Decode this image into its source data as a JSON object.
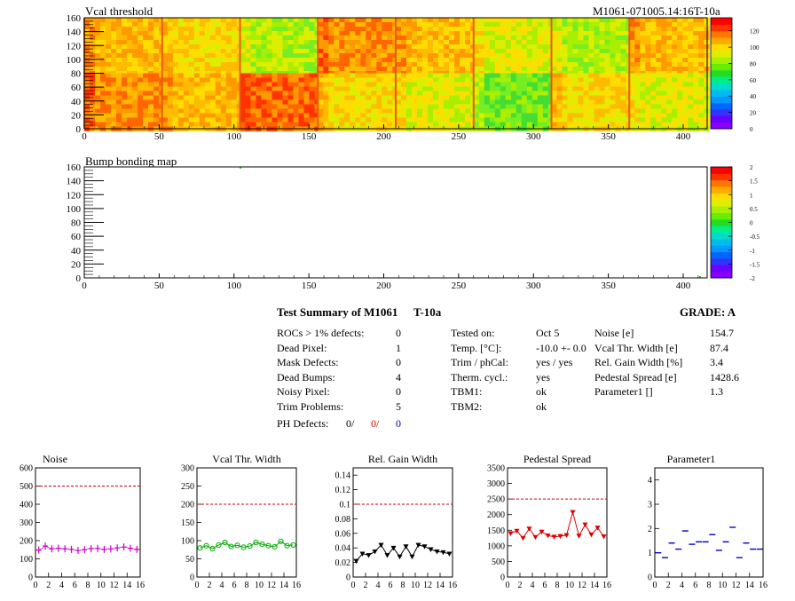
{
  "header": {
    "map1_title": "Vcal threshold",
    "module_id": "M1061-071005.14:16T-10a",
    "map2_title": "Bump bonding map"
  },
  "maps": {
    "x_ticks": [
      "0",
      "50",
      "100",
      "150",
      "200",
      "250",
      "300",
      "350",
      "400"
    ],
    "y_ticks": [
      "0",
      "20",
      "40",
      "60",
      "80",
      "100",
      "120",
      "140",
      "160"
    ],
    "colorbar1_labels": [
      "0",
      "20",
      "40",
      "60",
      "80",
      "100",
      "120"
    ],
    "colorbar2_labels": [
      "-2",
      "-1.5",
      "-1",
      "-0.5",
      "0",
      "0.5",
      "1",
      "1.5",
      "2"
    ]
  },
  "summary": {
    "title": "Test Summary of M1061",
    "subtitle": "T-10a",
    "grade": "GRADE:  A",
    "left_rows": [
      {
        "label": "ROCs > 1% defects:",
        "value": "0"
      },
      {
        "label": "Dead Pixel:",
        "value": "1"
      },
      {
        "label": "Mask Defects:",
        "value": "0"
      },
      {
        "label": "Dead Bumps:",
        "value": "4"
      },
      {
        "label": "Noisy Pixel:",
        "value": "0"
      },
      {
        "label": "Trim Problems:",
        "value": "5"
      }
    ],
    "ph_defects": {
      "label": "PH Defects:",
      "v1": "0/",
      "v2": "0/",
      "v3": "0"
    },
    "middle_rows": [
      {
        "label": "Tested on:",
        "value": "Oct 5"
      },
      {
        "label": "Temp. [°C]:",
        "value": "-10.0 +- 0.0"
      },
      {
        "label": "Trim / phCal:",
        "value": "yes / yes"
      },
      {
        "label": "Therm. cycl.:",
        "value": "yes"
      },
      {
        "label": "TBM1:",
        "value": "ok"
      },
      {
        "label": "TBM2:",
        "value": "ok"
      }
    ],
    "right_rows": [
      {
        "label": "Noise [e]",
        "value": "154.7"
      },
      {
        "label": "Vcal Thr. Width [e]",
        "value": "87.4"
      },
      {
        "label": "Rel. Gain Width [%]",
        "value": "3.4"
      },
      {
        "label": "Pedestal Spread [e]",
        "value": "1428.6"
      },
      {
        "label": "Parameter1 []",
        "value": "1.3"
      }
    ]
  },
  "colors": {
    "noise": "#cc00cc",
    "vcal": "#00aa00",
    "gain": "#000000",
    "pedestal": "#dd0000",
    "param": "#0000cc",
    "limit": "#cc0000"
  },
  "chart_data": [
    {
      "type": "scatter",
      "title": "Noise",
      "marker": "plus",
      "xlim": [
        0,
        16
      ],
      "ylim": [
        0,
        600
      ],
      "limit": 500,
      "x": [
        0,
        1,
        2,
        3,
        4,
        5,
        6,
        7,
        8,
        9,
        10,
        11,
        12,
        13,
        14,
        15
      ],
      "values": [
        148,
        170,
        155,
        158,
        155,
        152,
        146,
        150,
        156,
        157,
        152,
        154,
        160,
        165,
        158,
        152
      ],
      "xticks": [
        "0",
        "2",
        "4",
        "6",
        "8",
        "10",
        "12",
        "14",
        "16"
      ],
      "yticks": [
        "0",
        "100",
        "200",
        "300",
        "400",
        "500",
        "600"
      ]
    },
    {
      "type": "line",
      "title": "Vcal Thr. Width",
      "marker": "circle",
      "xlim": [
        0,
        16
      ],
      "ylim": [
        0,
        300
      ],
      "limit": 200,
      "x": [
        0,
        1,
        2,
        3,
        4,
        5,
        6,
        7,
        8,
        9,
        10,
        11,
        12,
        13,
        14,
        15
      ],
      "values": [
        80,
        86,
        78,
        88,
        95,
        84,
        87,
        82,
        85,
        95,
        90,
        86,
        83,
        98,
        86,
        88
      ],
      "xticks": [
        "0",
        "2",
        "4",
        "6",
        "8",
        "10",
        "12",
        "14",
        "16"
      ],
      "yticks": [
        "0",
        "50",
        "100",
        "150",
        "200",
        "250",
        "300"
      ]
    },
    {
      "type": "line",
      "title": "Rel. Gain Width",
      "marker": "triangle",
      "xlim": [
        0,
        16
      ],
      "ylim": [
        0,
        0.15
      ],
      "limit": 0.1,
      "x": [
        0,
        1,
        2,
        3,
        4,
        5,
        6,
        7,
        8,
        9,
        10,
        11,
        12,
        13,
        14,
        15
      ],
      "values": [
        0.022,
        0.032,
        0.03,
        0.035,
        0.044,
        0.03,
        0.04,
        0.028,
        0.042,
        0.028,
        0.044,
        0.042,
        0.038,
        0.035,
        0.034,
        0.032
      ],
      "xticks": [
        "0",
        "2",
        "4",
        "6",
        "8",
        "10",
        "12",
        "14",
        "16"
      ],
      "yticks": [
        "0",
        "0.02",
        "0.04",
        "0.06",
        "0.08",
        "0.1",
        "0.12",
        "0.14"
      ]
    },
    {
      "type": "line",
      "title": "Pedestal Spread",
      "marker": "triangle",
      "xlim": [
        0,
        16
      ],
      "ylim": [
        0,
        3500
      ],
      "limit": 2500,
      "x": [
        0,
        1,
        2,
        3,
        4,
        5,
        6,
        7,
        8,
        9,
        10,
        11,
        12,
        13,
        14,
        15
      ],
      "values": [
        1400,
        1480,
        1250,
        1550,
        1280,
        1450,
        1330,
        1290,
        1310,
        1340,
        2080,
        1320,
        1680,
        1360,
        1580,
        1300
      ],
      "xticks": [
        "0",
        "2",
        "4",
        "6",
        "8",
        "10",
        "12",
        "14",
        "16"
      ],
      "yticks": [
        "0",
        "500",
        "1000",
        "1500",
        "2000",
        "2500",
        "3000",
        "3500"
      ]
    },
    {
      "type": "scatter",
      "title": "Parameter1",
      "marker": "hbar",
      "xlim": [
        0,
        16
      ],
      "ylim": [
        0,
        4.5
      ],
      "x": [
        0,
        1,
        2,
        3,
        4,
        5,
        6,
        7,
        8,
        9,
        10,
        11,
        12,
        13,
        14,
        15
      ],
      "values": [
        1.0,
        0.8,
        1.4,
        1.15,
        1.9,
        1.35,
        1.45,
        1.45,
        1.75,
        1.1,
        1.45,
        2.05,
        0.8,
        1.4,
        1.15,
        1.15
      ],
      "xticks": [
        "0",
        "2",
        "4",
        "6",
        "8",
        "10",
        "12",
        "14",
        "16"
      ],
      "yticks": [
        "0",
        "1",
        "2",
        "3",
        "4"
      ]
    }
  ]
}
